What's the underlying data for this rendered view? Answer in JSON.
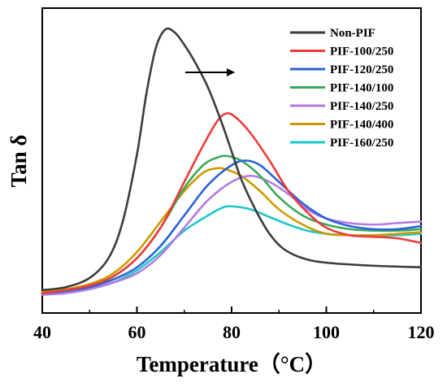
{
  "chart_data": {
    "type": "line",
    "title": "",
    "xlabel": "Temperature（°C）",
    "ylabel": "Tan δ",
    "xlim": [
      40,
      120
    ],
    "ylim": [
      0,
      1
    ],
    "x_ticks": [
      40,
      60,
      80,
      100,
      120
    ],
    "y_ticks_labeled": false,
    "grid": false,
    "legend_position": "top-right",
    "annotation": "arrow pointing right near the Non-PIF peak",
    "series": [
      {
        "name": "Non-PIF",
        "color": "#3c3c3c",
        "points": [
          [
            40,
            0.075
          ],
          [
            45,
            0.085
          ],
          [
            50,
            0.115
          ],
          [
            54,
            0.18
          ],
          [
            57,
            0.3
          ],
          [
            60,
            0.52
          ],
          [
            62,
            0.72
          ],
          [
            64,
            0.87
          ],
          [
            66,
            0.93
          ],
          [
            68,
            0.92
          ],
          [
            70,
            0.88
          ],
          [
            72,
            0.83
          ],
          [
            75,
            0.74
          ],
          [
            78,
            0.62
          ],
          [
            80,
            0.53
          ],
          [
            82,
            0.44
          ],
          [
            85,
            0.34
          ],
          [
            88,
            0.26
          ],
          [
            91,
            0.21
          ],
          [
            95,
            0.18
          ],
          [
            100,
            0.165
          ],
          [
            110,
            0.155
          ],
          [
            120,
            0.15
          ]
        ]
      },
      {
        "name": "PIF-100/250",
        "color": "#f03a3a",
        "points": [
          [
            40,
            0.065
          ],
          [
            45,
            0.075
          ],
          [
            50,
            0.09
          ],
          [
            55,
            0.12
          ],
          [
            60,
            0.18
          ],
          [
            65,
            0.28
          ],
          [
            70,
            0.43
          ],
          [
            74,
            0.55
          ],
          [
            77,
            0.63
          ],
          [
            79,
            0.655
          ],
          [
            81,
            0.64
          ],
          [
            84,
            0.59
          ],
          [
            88,
            0.5
          ],
          [
            92,
            0.4
          ],
          [
            96,
            0.33
          ],
          [
            100,
            0.28
          ],
          [
            105,
            0.255
          ],
          [
            110,
            0.25
          ],
          [
            115,
            0.245
          ],
          [
            120,
            0.23
          ]
        ]
      },
      {
        "name": "PIF-120/250",
        "color": "#2a62d6",
        "points": [
          [
            40,
            0.065
          ],
          [
            45,
            0.072
          ],
          [
            50,
            0.085
          ],
          [
            55,
            0.11
          ],
          [
            60,
            0.15
          ],
          [
            65,
            0.22
          ],
          [
            70,
            0.32
          ],
          [
            75,
            0.42
          ],
          [
            80,
            0.485
          ],
          [
            83,
            0.5
          ],
          [
            86,
            0.485
          ],
          [
            90,
            0.43
          ],
          [
            95,
            0.36
          ],
          [
            100,
            0.31
          ],
          [
            105,
            0.285
          ],
          [
            110,
            0.275
          ],
          [
            115,
            0.275
          ],
          [
            120,
            0.285
          ]
        ]
      },
      {
        "name": "PIF-140/100",
        "color": "#3aaa5a",
        "points": [
          [
            40,
            0.065
          ],
          [
            45,
            0.075
          ],
          [
            50,
            0.09
          ],
          [
            55,
            0.12
          ],
          [
            60,
            0.18
          ],
          [
            65,
            0.28
          ],
          [
            70,
            0.41
          ],
          [
            74,
            0.485
          ],
          [
            77,
            0.51
          ],
          [
            79,
            0.515
          ],
          [
            82,
            0.5
          ],
          [
            86,
            0.45
          ],
          [
            90,
            0.38
          ],
          [
            95,
            0.32
          ],
          [
            100,
            0.29
          ],
          [
            105,
            0.275
          ],
          [
            110,
            0.27
          ],
          [
            115,
            0.27
          ],
          [
            120,
            0.275
          ]
        ]
      },
      {
        "name": "PIF-140/250",
        "color": "#b37ae0",
        "points": [
          [
            40,
            0.06
          ],
          [
            45,
            0.065
          ],
          [
            50,
            0.078
          ],
          [
            55,
            0.1
          ],
          [
            60,
            0.13
          ],
          [
            65,
            0.19
          ],
          [
            70,
            0.28
          ],
          [
            75,
            0.37
          ],
          [
            80,
            0.43
          ],
          [
            84,
            0.45
          ],
          [
            88,
            0.43
          ],
          [
            92,
            0.39
          ],
          [
            96,
            0.34
          ],
          [
            100,
            0.31
          ],
          [
            105,
            0.295
          ],
          [
            110,
            0.29
          ],
          [
            115,
            0.295
          ],
          [
            120,
            0.3
          ]
        ]
      },
      {
        "name": "PIF-140/400",
        "color": "#cc9b00",
        "points": [
          [
            40,
            0.07
          ],
          [
            45,
            0.078
          ],
          [
            50,
            0.095
          ],
          [
            55,
            0.13
          ],
          [
            60,
            0.2
          ],
          [
            65,
            0.3
          ],
          [
            70,
            0.4
          ],
          [
            74,
            0.46
          ],
          [
            77,
            0.475
          ],
          [
            79,
            0.47
          ],
          [
            82,
            0.45
          ],
          [
            86,
            0.4
          ],
          [
            90,
            0.34
          ],
          [
            95,
            0.29
          ],
          [
            100,
            0.26
          ],
          [
            105,
            0.255
          ],
          [
            110,
            0.255
          ],
          [
            115,
            0.26
          ],
          [
            120,
            0.265
          ]
        ]
      },
      {
        "name": "PIF-160/250",
        "color": "#1ec8c8",
        "points": [
          [
            40,
            0.065
          ],
          [
            45,
            0.07
          ],
          [
            50,
            0.08
          ],
          [
            55,
            0.1
          ],
          [
            60,
            0.14
          ],
          [
            65,
            0.2
          ],
          [
            70,
            0.27
          ],
          [
            75,
            0.32
          ],
          [
            78,
            0.345
          ],
          [
            80,
            0.35
          ],
          [
            84,
            0.34
          ],
          [
            88,
            0.315
          ],
          [
            92,
            0.29
          ],
          [
            96,
            0.27
          ],
          [
            100,
            0.26
          ],
          [
            105,
            0.255
          ],
          [
            110,
            0.255
          ],
          [
            115,
            0.255
          ],
          [
            120,
            0.26
          ]
        ]
      }
    ]
  }
}
